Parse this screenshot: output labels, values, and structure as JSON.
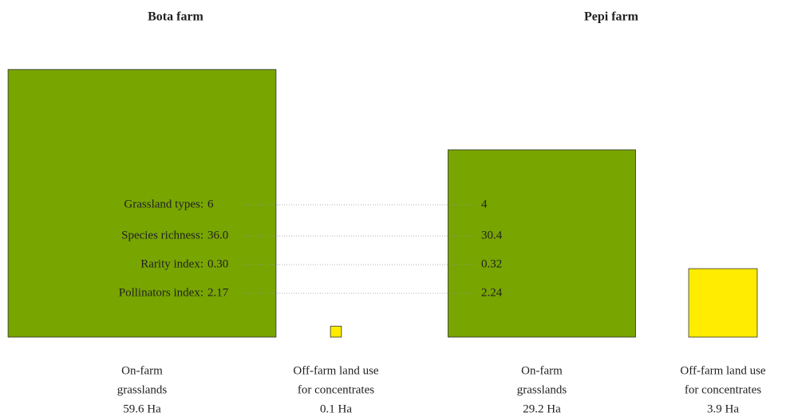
{
  "farms": [
    {
      "name": "Bota farm",
      "items": [
        {
          "label": [
            "On-farm",
            "grasslands"
          ],
          "area": 59.6,
          "area_label": "59.6 Ha",
          "color": "#78a500"
        },
        {
          "label": [
            "Off-farm land use",
            "for concentrates"
          ],
          "area": 0.1,
          "area_label": "0.1 Ha",
          "color": "#ffec00"
        }
      ],
      "index_values": [
        "6",
        "36.0",
        "0.30",
        "2.17"
      ]
    },
    {
      "name": "Pepi farm",
      "items": [
        {
          "label": [
            "On-farm",
            "grasslands"
          ],
          "area": 29.2,
          "area_label": "29.2 Ha",
          "color": "#78a500"
        },
        {
          "label": [
            "Off-farm land use",
            "for concentrates"
          ],
          "area": 3.9,
          "area_label": "3.9 Ha",
          "color": "#ffec00"
        }
      ],
      "index_values": [
        "4",
        "30.4",
        "0.32",
        "2.24"
      ]
    }
  ],
  "index_labels": [
    "Grassland types:",
    "Species richness:",
    "Rarity index:",
    "Pollinators index:"
  ]
}
